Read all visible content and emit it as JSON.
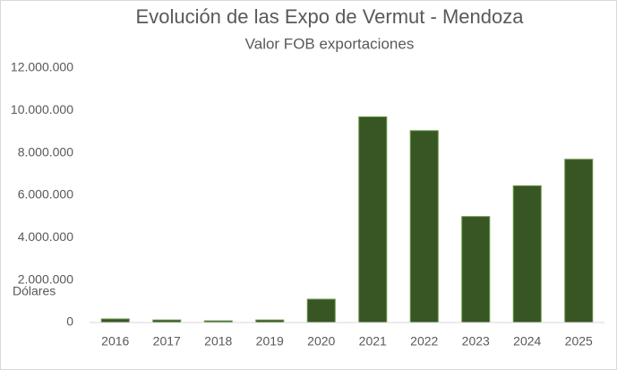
{
  "chart_data": {
    "type": "bar",
    "title": "Evolución de las Expo de Vermut - Mendoza",
    "subtitle": "Valor FOB exportaciones",
    "y_label": "Dólares",
    "categories": [
      "2016",
      "2017",
      "2018",
      "2019",
      "2020",
      "2021",
      "2022",
      "2023",
      "2024",
      "2025"
    ],
    "values": [
      170000,
      120000,
      80000,
      120000,
      1100000,
      9700000,
      9050000,
      5000000,
      6450000,
      7700000
    ],
    "color": "#375623",
    "ylim": [
      0,
      12000000
    ],
    "yticks": [
      0,
      {
        "value": 2000000,
        "label": "2.000.000"
      },
      {
        "value": 4000000,
        "label": "4.000.000"
      },
      {
        "value": 6000000,
        "label": "6.000.000"
      },
      {
        "value": 8000000,
        "label": "8.000.000"
      },
      {
        "value": 10000000,
        "label": "10.000.000"
      },
      {
        "value": 12000000,
        "label": "12.000.000"
      }
    ],
    "grid": false
  }
}
